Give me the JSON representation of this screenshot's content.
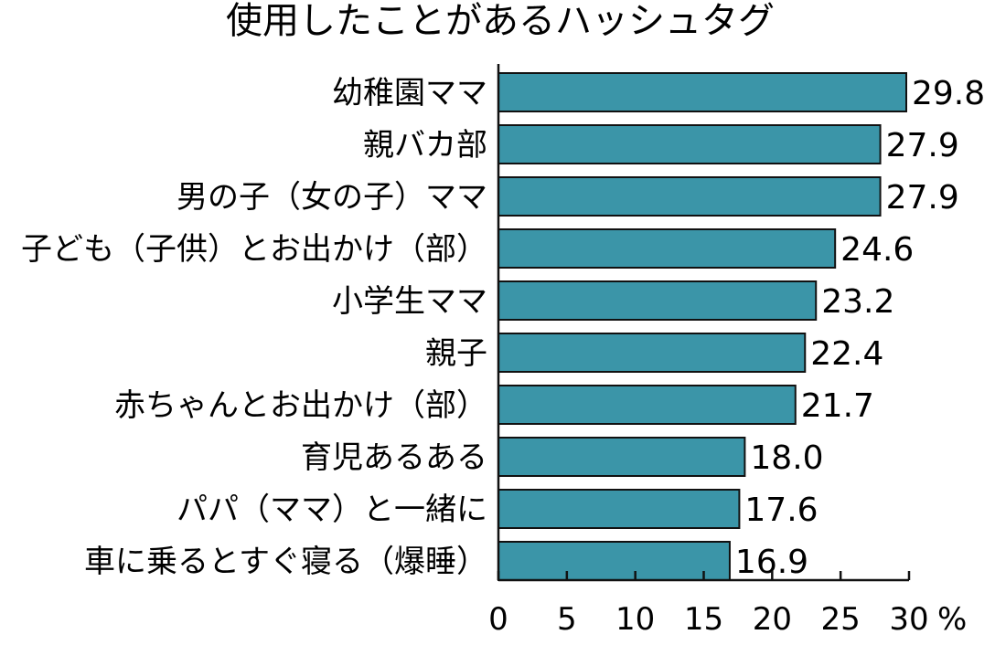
{
  "chart_data": {
    "type": "bar",
    "orientation": "horizontal",
    "title": "使用したことがあるハッシュタグ",
    "categories": [
      "幼稚園ママ",
      "親バカ部",
      "男の子（女の子）ママ",
      "子ども（子供）とお出かけ（部）",
      "小学生ママ",
      "親子",
      "赤ちゃんとお出かけ（部）",
      "育児あるある",
      "パパ（ママ）と一緒に",
      "車に乗るとすぐ寝る（爆睡）"
    ],
    "values": [
      29.8,
      27.9,
      27.9,
      24.6,
      23.2,
      22.4,
      21.7,
      18.0,
      17.6,
      16.9
    ],
    "value_labels": [
      "29.8",
      "27.9",
      "27.9",
      "24.6",
      "23.2",
      "22.4",
      "21.7",
      "18.0",
      "17.6",
      "16.9"
    ],
    "xlim": [
      0,
      30
    ],
    "xticks": [
      0,
      5,
      10,
      15,
      20,
      25,
      30
    ],
    "xtick_labels": [
      "0",
      "5",
      "10",
      "15",
      "20",
      "25",
      "30"
    ],
    "unit": "%",
    "grid": false,
    "colors": {
      "bar": "#3b95a8",
      "bar_stroke": "#111111",
      "axis": "#111111"
    }
  }
}
